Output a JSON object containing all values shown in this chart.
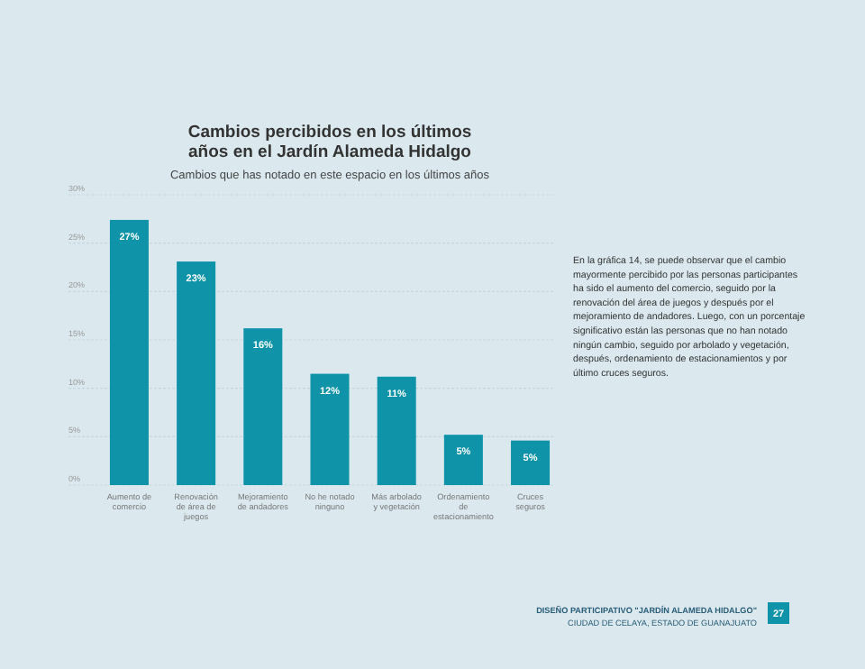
{
  "chart_data": {
    "type": "bar",
    "title": "Cambios percibidos en los últimos años en el Jardín Alameda Hidalgo",
    "subtitle": "Cambios que has notado en este espacio en los últimos años",
    "categories": [
      "Aumento de comercio",
      "Renovación de área de juegos",
      "Mejoramiento de andadores",
      "No he notado ninguno",
      "Más arbolado y vegetación",
      "Ordenamiento de estacionamiento",
      "Cruces seguros"
    ],
    "values": [
      27.4,
      23.1,
      16.2,
      11.5,
      11.2,
      5.2,
      4.6
    ],
    "value_labels": [
      "27%",
      "23%",
      "16%",
      "12%",
      "11%",
      "5%",
      "5%"
    ],
    "color": "#0e93a8",
    "ylim": [
      0,
      30
    ],
    "yticks": [
      {
        "value": 0,
        "label": "0%"
      },
      {
        "value": 5,
        "label": "5%"
      },
      {
        "value": 10,
        "label": "10%"
      },
      {
        "value": 15,
        "label": "15%"
      },
      {
        "value": 20,
        "label": "20%"
      },
      {
        "value": 25,
        "label": "25%"
      },
      {
        "value": 30,
        "label": "30%"
      }
    ],
    "grid": "y",
    "annotations": [
      "En la gráfica 14, se puede observar que el cambio mayormente percibido por las personas participantes ha sido el aumento del comercio, seguido por la renovación del área de juegos y después por el mejoramiento de andadores. Luego, con un porcentaje significativo están las personas que no han notado ningún cambio, seguido por arbolado y vegetación, después, ordenamiento de estacionamientos y por último cruces seguros.",
      "DISEÑO PARTICIPATIVO \"JARDÍN ALAMEDA HIDALGO\"",
      "CIUDAD DE CELAYA, ESTADO DE GUANAJUATO",
      "27"
    ]
  }
}
